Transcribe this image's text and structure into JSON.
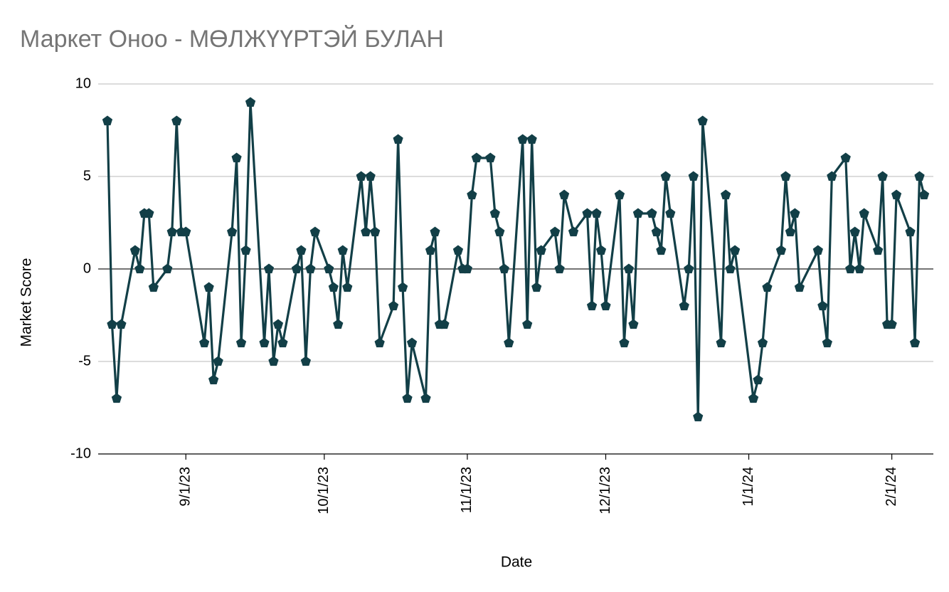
{
  "chart_data": {
    "type": "line",
    "title": "Маркет Оноо - МӨЛЖҮҮРТЭЙ БУЛАН",
    "x_label": "Date",
    "y_label": "Market Score",
    "color": "#123f47",
    "grid": true,
    "xlim": [
      "8/13/23",
      "2/10/24"
    ],
    "xticks": [
      "9/1/23",
      "10/1/23",
      "11/1/23",
      "12/1/23",
      "1/1/24",
      "2/1/24"
    ],
    "ylim": [
      -10,
      10
    ],
    "yticks": [
      -10,
      -5,
      0,
      5,
      10
    ],
    "x": [
      "8/15/23",
      "8/16/23",
      "8/17/23",
      "8/18/23",
      "8/21/23",
      "8/22/23",
      "8/23/23",
      "8/24/23",
      "8/25/23",
      "8/28/23",
      "8/29/23",
      "8/30/23",
      "8/31/23",
      "9/1/23",
      "9/5/23",
      "9/6/23",
      "9/7/23",
      "9/8/23",
      "9/11/23",
      "9/12/23",
      "9/13/23",
      "9/14/23",
      "9/15/23",
      "9/18/23",
      "9/19/23",
      "9/20/23",
      "9/21/23",
      "9/22/23",
      "9/25/23",
      "9/26/23",
      "9/27/23",
      "9/28/23",
      "9/29/23",
      "10/2/23",
      "10/3/23",
      "10/4/23",
      "10/5/23",
      "10/6/23",
      "10/9/23",
      "10/10/23",
      "10/11/23",
      "10/12/23",
      "10/13/23",
      "10/16/23",
      "10/17/23",
      "10/18/23",
      "10/19/23",
      "10/20/23",
      "10/23/23",
      "10/24/23",
      "10/25/23",
      "10/26/23",
      "10/27/23",
      "10/30/23",
      "10/31/23",
      "11/1/23",
      "11/2/23",
      "11/3/23",
      "11/6/23",
      "11/7/23",
      "11/8/23",
      "11/9/23",
      "11/10/23",
      "11/13/23",
      "11/14/23",
      "11/15/23",
      "11/16/23",
      "11/17/23",
      "11/20/23",
      "11/21/23",
      "11/22/23",
      "11/24/23",
      "11/27/23",
      "11/28/23",
      "11/29/23",
      "11/30/23",
      "12/1/23",
      "12/4/23",
      "12/5/23",
      "12/6/23",
      "12/7/23",
      "12/8/23",
      "12/11/23",
      "12/12/23",
      "12/13/23",
      "12/14/23",
      "12/15/23",
      "12/18/23",
      "12/19/23",
      "12/20/23",
      "12/21/23",
      "12/22/23",
      "12/26/23",
      "12/27/23",
      "12/28/23",
      "12/29/23",
      "1/2/24",
      "1/3/24",
      "1/4/24",
      "1/5/24",
      "1/8/24",
      "1/9/24",
      "1/10/24",
      "1/11/24",
      "1/12/24",
      "1/16/24",
      "1/17/24",
      "1/18/24",
      "1/19/24",
      "1/22/24",
      "1/23/24",
      "1/24/24",
      "1/25/24",
      "1/26/24",
      "1/29/24",
      "1/30/24",
      "1/31/24",
      "2/1/24",
      "2/2/24",
      "2/5/24",
      "2/6/24",
      "2/7/24",
      "2/8/24"
    ],
    "values": [
      8,
      -3,
      -7,
      -3,
      1,
      0,
      3,
      3,
      -1,
      0,
      2,
      8,
      2,
      2,
      -4,
      -1,
      -6,
      -5,
      2,
      6,
      -4,
      1,
      9,
      -4,
      0,
      -5,
      -3,
      -4,
      0,
      1,
      -5,
      0,
      2,
      0,
      -1,
      -3,
      1,
      -1,
      5,
      2,
      5,
      2,
      -4,
      -2,
      7,
      -1,
      -7,
      -4,
      -7,
      1,
      2,
      -3,
      -3,
      1,
      0,
      0,
      4,
      6,
      6,
      3,
      2,
      0,
      -4,
      7,
      -3,
      7,
      -1,
      1,
      2,
      0,
      4,
      2,
      3,
      -2,
      3,
      1,
      -2,
      4,
      -4,
      0,
      -3,
      3,
      3,
      2,
      1,
      5,
      3,
      -2,
      0,
      5,
      -8,
      8,
      -4,
      4,
      0,
      1,
      -7,
      -6,
      -4,
      -1,
      1,
      5,
      2,
      3,
      -1,
      1,
      -2,
      -4,
      5,
      6,
      0,
      2,
      0,
      3,
      1,
      5,
      -3,
      -3,
      4,
      2,
      -4,
      5,
      4
    ]
  }
}
